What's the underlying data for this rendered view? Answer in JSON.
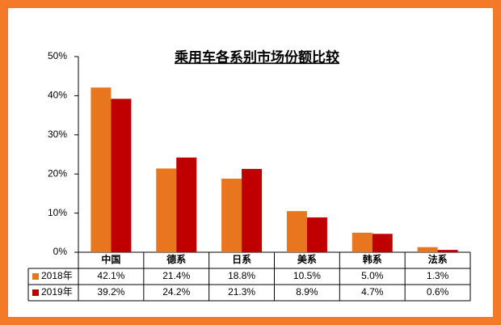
{
  "chart_data": {
    "type": "bar",
    "title": "乘用车各系别市场份额比较",
    "categories": [
      "中国",
      "德系",
      "日系",
      "美系",
      "韩系",
      "法系"
    ],
    "series": [
      {
        "name": "2018年",
        "color": "#e8761e",
        "values": [
          42.1,
          21.4,
          18.8,
          10.5,
          5.0,
          1.3
        ],
        "value_labels": [
          "42.1%",
          "21.4%",
          "18.8%",
          "10.5%",
          "5.0%",
          "1.3%"
        ]
      },
      {
        "name": "2019年",
        "color": "#c00000",
        "values": [
          39.2,
          24.2,
          21.3,
          8.9,
          4.7,
          0.6
        ],
        "value_labels": [
          "39.2%",
          "24.2%",
          "21.3%",
          "8.9%",
          "4.7%",
          "0.6%"
        ]
      }
    ],
    "ylim": [
      0,
      50
    ],
    "yticks": [
      {
        "value": 0,
        "label": "0%"
      },
      {
        "value": 10,
        "label": "10%"
      },
      {
        "value": 20,
        "label": "20%"
      },
      {
        "value": 30,
        "label": "30%"
      },
      {
        "value": 40,
        "label": "40%"
      },
      {
        "value": 50,
        "label": "50%"
      }
    ],
    "grid": false
  }
}
